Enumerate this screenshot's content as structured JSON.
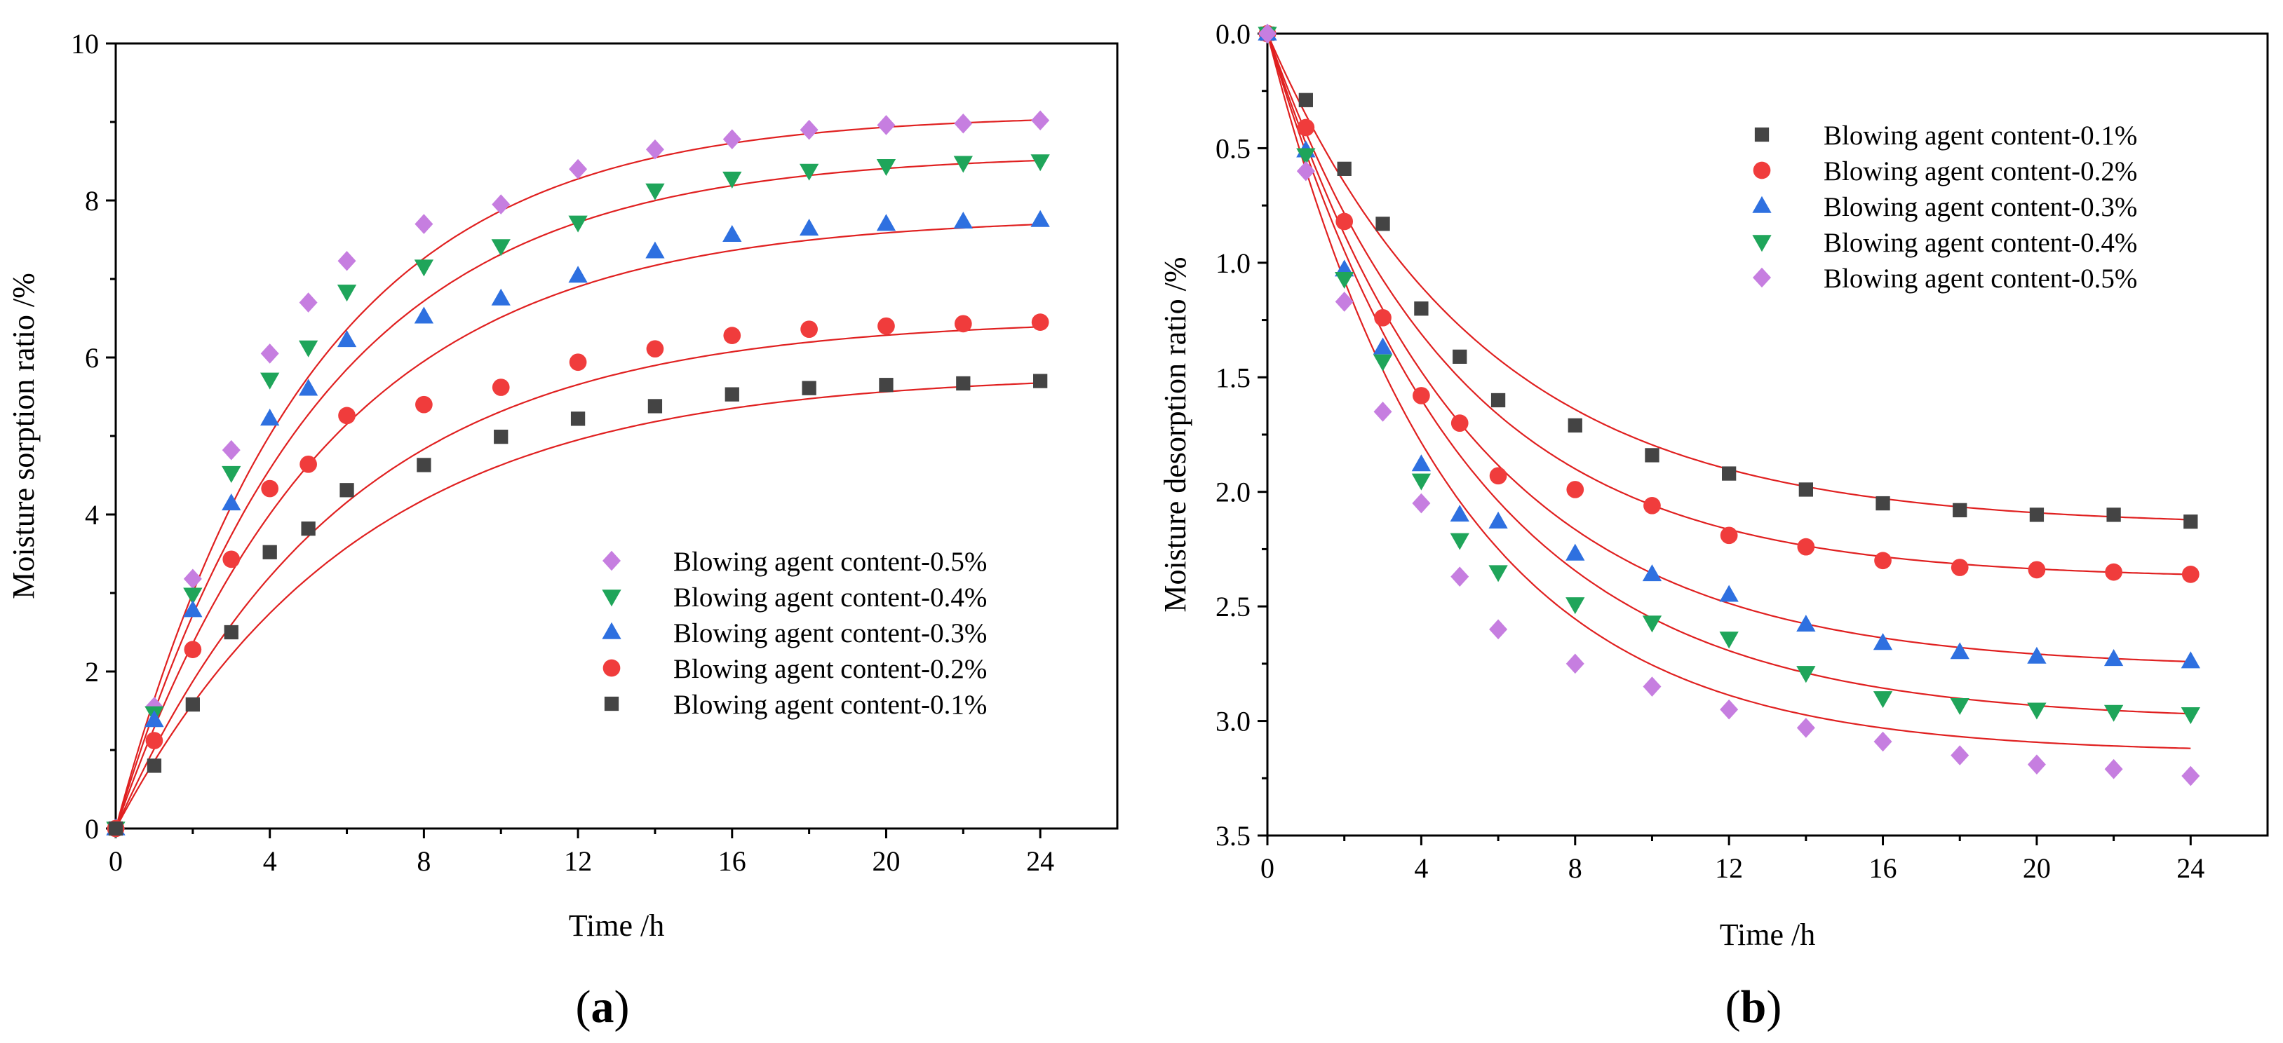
{
  "chart_data": [
    {
      "type": "scatter",
      "panel_label": "a",
      "title": "",
      "xlabel": "Time /h",
      "ylabel": "Moisture sorption ratio /%",
      "xlim": [
        0,
        26
      ],
      "ylim": [
        0,
        10
      ],
      "y_inverted": false,
      "xticks": [
        0,
        4,
        8,
        12,
        16,
        20,
        24
      ],
      "yticks": [
        0,
        2,
        4,
        6,
        8,
        10
      ],
      "legend_position": "bottom-right",
      "fit_lines": true,
      "x": [
        0,
        1,
        2,
        3,
        4,
        5,
        6,
        8,
        10,
        12,
        14,
        16,
        18,
        20,
        22,
        24
      ],
      "series": [
        {
          "name": "Blowing agent content-0.5%",
          "marker": "diamond",
          "color": "#C67EE0",
          "values": [
            0,
            1.55,
            3.18,
            4.82,
            6.05,
            6.7,
            7.23,
            7.7,
            7.95,
            8.4,
            8.65,
            8.78,
            8.9,
            8.96,
            8.98,
            9.02
          ],
          "fit": {
            "a": 9.1,
            "k": 0.2
          }
        },
        {
          "name": "Blowing agent content-0.4%",
          "marker": "triangle-down",
          "color": "#1FA55A",
          "values": [
            0,
            1.47,
            2.98,
            4.53,
            5.72,
            6.13,
            6.84,
            7.16,
            7.42,
            7.72,
            8.13,
            8.28,
            8.38,
            8.44,
            8.48,
            8.5
          ],
          "fit": {
            "a": 8.6,
            "k": 0.19
          }
        },
        {
          "name": "Blowing agent content-0.3%",
          "marker": "triangle-up",
          "color": "#2E70E0",
          "values": [
            0,
            1.38,
            2.78,
            4.14,
            5.22,
            5.6,
            6.22,
            6.52,
            6.75,
            7.04,
            7.35,
            7.56,
            7.64,
            7.7,
            7.73,
            7.75
          ],
          "fit": {
            "a": 7.8,
            "k": 0.18
          }
        },
        {
          "name": "Blowing agent content-0.2%",
          "marker": "circle",
          "color": "#F03C3C",
          "values": [
            0,
            1.12,
            2.28,
            3.43,
            4.33,
            4.64,
            5.26,
            5.4,
            5.62,
            5.94,
            6.11,
            6.28,
            6.36,
            6.4,
            6.43,
            6.45
          ],
          "fit": {
            "a": 6.5,
            "k": 0.17
          }
        },
        {
          "name": "Blowing agent content-0.1%",
          "marker": "square",
          "color": "#444444",
          "values": [
            0,
            0.8,
            1.58,
            2.5,
            3.52,
            3.82,
            4.31,
            4.63,
            4.99,
            5.22,
            5.38,
            5.53,
            5.61,
            5.65,
            5.67,
            5.7
          ],
          "fit": {
            "a": 5.8,
            "k": 0.16
          }
        }
      ]
    },
    {
      "type": "scatter",
      "panel_label": "b",
      "title": "",
      "xlabel": "Time /h",
      "ylabel": "Moisture desorption ratio /%",
      "xlim": [
        0,
        26
      ],
      "ylim": [
        0,
        3.5
      ],
      "y_inverted": true,
      "xticks": [
        0,
        4,
        8,
        12,
        16,
        20,
        24
      ],
      "yticks": [
        0,
        0.5,
        1,
        1.5,
        2,
        2.5,
        3,
        3.5
      ],
      "ytick_labels": [
        "0.0",
        "0.5",
        "1.0",
        "1.5",
        "2.0",
        "2.5",
        "3.0",
        "3.5"
      ],
      "legend_position": "top-right",
      "fit_lines": true,
      "x": [
        0,
        1,
        2,
        3,
        4,
        5,
        6,
        8,
        10,
        12,
        14,
        16,
        18,
        20,
        22,
        24
      ],
      "series": [
        {
          "name": "Blowing agent content-0.1%",
          "marker": "square",
          "color": "#444444",
          "values": [
            0,
            0.29,
            0.59,
            0.83,
            1.2,
            1.41,
            1.6,
            1.71,
            1.84,
            1.92,
            1.99,
            2.05,
            2.08,
            2.1,
            2.1,
            2.13
          ],
          "fit": {
            "a": 2.15,
            "k": 0.18
          }
        },
        {
          "name": "Blowing agent content-0.2%",
          "marker": "circle",
          "color": "#F03C3C",
          "values": [
            0,
            0.41,
            0.82,
            1.24,
            1.58,
            1.7,
            1.93,
            1.99,
            2.06,
            2.19,
            2.24,
            2.3,
            2.33,
            2.34,
            2.35,
            2.36
          ],
          "fit": {
            "a": 2.38,
            "k": 0.2
          }
        },
        {
          "name": "Blowing agent content-0.3%",
          "marker": "triangle-up",
          "color": "#2E70E0",
          "values": [
            0,
            0.51,
            1.03,
            1.37,
            1.88,
            2.1,
            2.13,
            2.27,
            2.36,
            2.45,
            2.58,
            2.66,
            2.7,
            2.72,
            2.73,
            2.74
          ],
          "fit": {
            "a": 2.77,
            "k": 0.19
          }
        },
        {
          "name": "Blowing agent content-0.4%",
          "marker": "triangle-down",
          "color": "#1FA55A",
          "values": [
            0,
            0.53,
            1.07,
            1.43,
            1.95,
            2.21,
            2.35,
            2.49,
            2.57,
            2.64,
            2.79,
            2.9,
            2.93,
            2.95,
            2.96,
            2.97
          ],
          "fit": {
            "a": 3.0,
            "k": 0.19
          }
        },
        {
          "name": "Blowing agent content-0.5%",
          "marker": "diamond",
          "color": "#C67EE0",
          "values": [
            0,
            0.6,
            1.17,
            1.65,
            2.05,
            2.37,
            2.6,
            2.75,
            2.85,
            2.95,
            3.03,
            3.09,
            3.15,
            3.19,
            3.21,
            3.24
          ],
          "fit": {
            "a": 3.14,
            "k": 0.21
          }
        }
      ]
    }
  ],
  "fit_line_color": "#E02020"
}
